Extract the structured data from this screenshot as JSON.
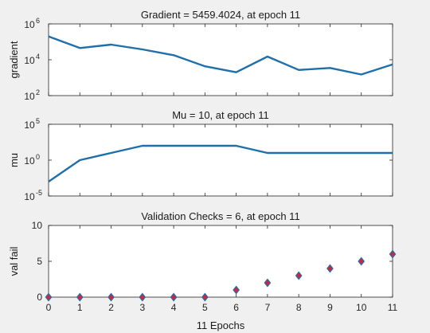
{
  "figure": {
    "background": "#f0f0f0",
    "line_color": "#1f6faa",
    "marker_face": "#d4233a",
    "marker_edge": "#1f6faa"
  },
  "chart_data": [
    {
      "type": "line",
      "title": "Gradient = 5459.4024, at epoch 11",
      "xlabel": "",
      "ylabel": "gradient",
      "yscale": "log",
      "ylim": [
        100,
        1000000
      ],
      "xlim": [
        0,
        11
      ],
      "yticks": [
        100,
        10000,
        1000000
      ],
      "ytick_labels": [
        {
          "base": "10",
          "exp": "2"
        },
        {
          "base": "10",
          "exp": "4"
        },
        {
          "base": "10",
          "exp": "6"
        }
      ],
      "x": [
        0,
        1,
        2,
        3,
        4,
        5,
        6,
        7,
        8,
        9,
        10,
        11
      ],
      "y": [
        200000,
        45000,
        70000,
        38000,
        18000,
        4300,
        2000,
        15000,
        2700,
        3500,
        1500,
        5459.4024
      ]
    },
    {
      "type": "line",
      "title": "Mu = 10, at epoch 11",
      "xlabel": "",
      "ylabel": "mu",
      "yscale": "log",
      "ylim": [
        1e-05,
        100000
      ],
      "xlim": [
        0,
        11
      ],
      "yticks": [
        1e-05,
        1,
        100000
      ],
      "ytick_labels": [
        {
          "base": "10",
          "exp": "-5"
        },
        {
          "base": "10",
          "exp": "0"
        },
        {
          "base": "10",
          "exp": "5"
        }
      ],
      "x": [
        0,
        1,
        2,
        3,
        4,
        5,
        6,
        7,
        8,
        9,
        10,
        11
      ],
      "y": [
        0.001,
        1,
        10,
        100,
        100,
        100,
        100,
        10,
        10,
        10,
        10,
        10
      ]
    },
    {
      "type": "scatter",
      "title": "Validation Checks = 6, at epoch 11",
      "xlabel": "11 Epochs",
      "ylabel": "val fail",
      "ylim": [
        0,
        10
      ],
      "xlim": [
        0,
        11
      ],
      "yticks": [
        0,
        5,
        10
      ],
      "xticks": [
        0,
        1,
        2,
        3,
        4,
        5,
        6,
        7,
        8,
        9,
        10,
        11
      ],
      "x": [
        0,
        1,
        2,
        3,
        4,
        5,
        6,
        7,
        8,
        9,
        10,
        11
      ],
      "y": [
        0,
        0,
        0,
        0,
        0,
        0,
        1,
        2,
        3,
        4,
        5,
        6
      ]
    }
  ]
}
